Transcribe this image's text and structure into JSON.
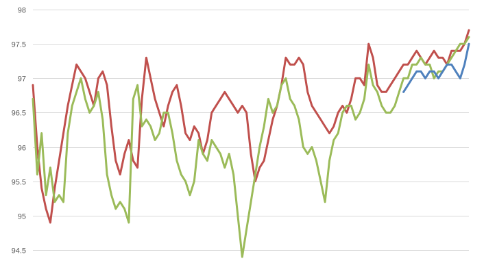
{
  "chart_data": {
    "type": "line",
    "title": "",
    "xlabel": "",
    "ylabel": "",
    "ylim": [
      94.5,
      98
    ],
    "yticks": [
      "94.5",
      "95",
      "95.5",
      "96",
      "96.5",
      "97",
      "97.5",
      "98"
    ],
    "grid": true,
    "legend": "none",
    "x_range": [
      0,
      100
    ],
    "series": [
      {
        "color": "#C0504D",
        "x": [
          0,
          1,
          2,
          3,
          4,
          5,
          6,
          7,
          8,
          9,
          10,
          11,
          12,
          13,
          14,
          15,
          16,
          17,
          18,
          19,
          20,
          21,
          22,
          23,
          24,
          25,
          26,
          27,
          28,
          29,
          30,
          31,
          32,
          33,
          34,
          35,
          36,
          37,
          38,
          39,
          40,
          41,
          42,
          43,
          44,
          45,
          46,
          47,
          48,
          49,
          50,
          51,
          52,
          53,
          54,
          55,
          56,
          57,
          58,
          59,
          60,
          61,
          62,
          63,
          64,
          65,
          66,
          67,
          68,
          69,
          70,
          71,
          72,
          73,
          74,
          75,
          76,
          77,
          78,
          79,
          80,
          81,
          82,
          83,
          84,
          85,
          86,
          87,
          88,
          89,
          90,
          91,
          92,
          93,
          94,
          95,
          96,
          97,
          98,
          99,
          100
        ],
        "values": [
          96.9,
          96.0,
          95.4,
          95.1,
          94.9,
          95.4,
          95.8,
          96.2,
          96.6,
          96.9,
          97.2,
          97.1,
          97.0,
          96.8,
          96.6,
          97.0,
          97.1,
          96.9,
          96.3,
          95.8,
          95.6,
          95.9,
          96.1,
          95.8,
          95.7,
          96.7,
          97.3,
          97.0,
          96.7,
          96.5,
          96.3,
          96.6,
          96.8,
          96.9,
          96.6,
          96.2,
          96.1,
          96.3,
          96.2,
          95.9,
          96.1,
          96.5,
          96.6,
          96.7,
          96.8,
          96.7,
          96.6,
          96.5,
          96.6,
          96.5,
          95.9,
          95.5,
          95.7,
          95.8,
          96.1,
          96.4,
          96.6,
          96.9,
          97.3,
          97.2,
          97.2,
          97.3,
          97.2,
          96.8,
          96.6,
          96.5,
          96.4,
          96.3,
          96.2,
          96.3,
          96.5,
          96.6,
          96.5,
          96.7,
          97.0,
          97.0,
          96.9,
          97.5,
          97.3,
          96.9,
          96.8,
          96.8,
          96.9,
          97.0,
          97.1,
          97.2,
          97.2,
          97.3,
          97.4,
          97.3,
          97.2,
          97.3,
          97.4,
          97.3,
          97.3,
          97.2,
          97.4,
          97.4,
          97.4,
          97.5,
          97.7
        ]
      },
      {
        "color": "#9BBB59",
        "x": [
          0,
          1,
          2,
          3,
          4,
          5,
          6,
          7,
          8,
          9,
          10,
          11,
          12,
          13,
          14,
          15,
          16,
          17,
          18,
          19,
          20,
          21,
          22,
          23,
          24,
          25,
          26,
          27,
          28,
          29,
          30,
          31,
          32,
          33,
          34,
          35,
          36,
          37,
          38,
          39,
          40,
          41,
          42,
          43,
          44,
          45,
          46,
          47,
          48,
          49,
          50,
          51,
          52,
          53,
          54,
          55,
          56,
          57,
          58,
          59,
          60,
          61,
          62,
          63,
          64,
          65,
          66,
          67,
          68,
          69,
          70,
          71,
          72,
          73,
          74,
          75,
          76,
          77,
          78,
          79,
          80,
          81,
          82,
          83,
          84,
          85,
          86,
          87,
          88,
          89,
          90,
          91,
          92,
          93,
          94,
          95,
          96,
          97,
          98,
          99,
          100
        ],
        "values": [
          96.7,
          95.6,
          96.2,
          95.3,
          95.7,
          95.2,
          95.3,
          95.2,
          96.2,
          96.6,
          96.8,
          97.0,
          96.7,
          96.5,
          96.6,
          96.8,
          96.4,
          95.6,
          95.3,
          95.1,
          95.2,
          95.1,
          94.9,
          96.7,
          96.9,
          96.3,
          96.4,
          96.3,
          96.1,
          96.2,
          96.5,
          96.5,
          96.2,
          95.8,
          95.6,
          95.5,
          95.3,
          95.5,
          96.1,
          95.9,
          95.8,
          96.1,
          96.0,
          95.9,
          95.7,
          95.9,
          95.6,
          95.0,
          94.4,
          94.8,
          95.2,
          95.6,
          96.0,
          96.3,
          96.7,
          96.5,
          96.6,
          96.9,
          97.0,
          96.7,
          96.6,
          96.4,
          96.0,
          95.9,
          96.0,
          95.8,
          95.5,
          95.2,
          95.8,
          96.1,
          96.2,
          96.5,
          96.6,
          96.6,
          96.4,
          96.5,
          96.7,
          97.2,
          96.9,
          96.8,
          96.6,
          96.5,
          96.5,
          96.6,
          96.8,
          97.0,
          97.0,
          97.2,
          97.2,
          97.3,
          97.2,
          97.2,
          97.0,
          97.1,
          97.1,
          97.2,
          97.3,
          97.4,
          97.5,
          97.5,
          97.6
        ]
      },
      {
        "color": "#4F81BD",
        "x": [
          85,
          86,
          87,
          88,
          89,
          90,
          91,
          92,
          93,
          94,
          95,
          96,
          97,
          98,
          99,
          100
        ],
        "values": [
          96.8,
          96.9,
          97.0,
          97.1,
          97.1,
          97.0,
          97.1,
          97.1,
          97.0,
          97.1,
          97.2,
          97.2,
          97.1,
          97.0,
          97.2,
          97.5
        ]
      }
    ]
  }
}
